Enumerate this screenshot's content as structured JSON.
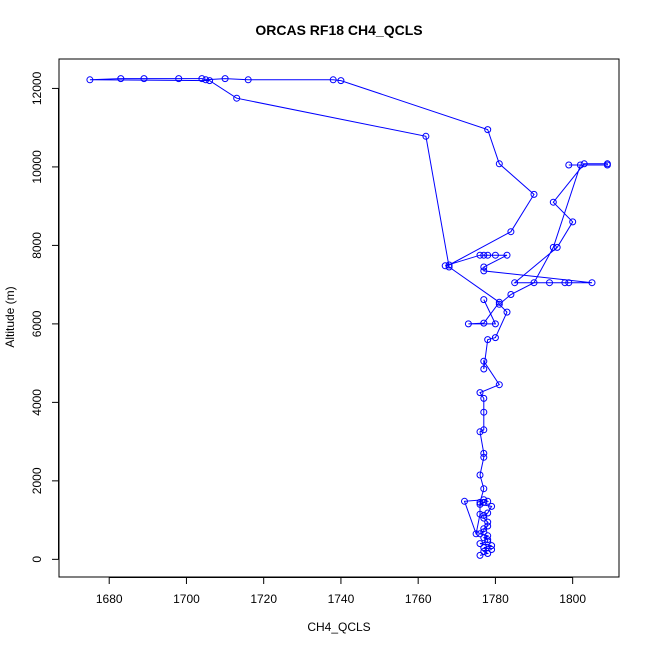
{
  "chart_data": {
    "type": "line",
    "title": "ORCAS RF18 CH4_QCLS",
    "xlabel": "CH4_QCLS",
    "ylabel": "Altitude (m)",
    "xlim": [
      1667,
      1812
    ],
    "ylim": [
      -450,
      12750
    ],
    "xticks": [
      1680,
      1700,
      1720,
      1740,
      1760,
      1780,
      1800
    ],
    "yticks": [
      0,
      2000,
      4000,
      6000,
      8000,
      10000,
      12000
    ],
    "grid": false,
    "marker": "open-circle",
    "line_color": "#0000ff",
    "series": [
      {
        "values": [
          [
            1776,
            100
          ],
          [
            1778,
            150
          ],
          [
            1777,
            200
          ],
          [
            1779,
            250
          ],
          [
            1777,
            300
          ],
          [
            1779,
            350
          ],
          [
            1776,
            400
          ],
          [
            1778,
            450
          ],
          [
            1778,
            500
          ],
          [
            1777,
            550
          ],
          [
            1778,
            600
          ],
          [
            1776,
            650
          ],
          [
            1777,
            700
          ],
          [
            1777,
            780
          ],
          [
            1778,
            850
          ],
          [
            1778,
            950
          ],
          [
            1777,
            1050
          ],
          [
            1777,
            1120
          ],
          [
            1778,
            1180
          ],
          [
            1779,
            1350
          ],
          [
            1776,
            1400
          ],
          [
            1777,
            1450
          ],
          [
            1778,
            1480
          ],
          [
            1777,
            1520
          ],
          [
            1772,
            1480
          ],
          [
            1775,
            650
          ],
          [
            1776,
            1150
          ],
          [
            1776,
            1450
          ],
          [
            1777,
            1800
          ],
          [
            1776,
            2150
          ],
          [
            1777,
            2600
          ],
          [
            1777,
            2700
          ],
          [
            1776,
            3250
          ],
          [
            1777,
            3300
          ],
          [
            1777,
            3750
          ],
          [
            1777,
            4100
          ],
          [
            1776,
            4250
          ],
          [
            1781,
            4450
          ],
          [
            1777,
            5050
          ],
          [
            1777,
            4850
          ],
          [
            1778,
            5600
          ],
          [
            1780,
            5650
          ],
          [
            1783,
            6300
          ],
          [
            1781,
            6500
          ],
          [
            1784,
            6750
          ],
          [
            1790,
            7050
          ],
          [
            1795,
            7950
          ],
          [
            1802,
            10050
          ],
          [
            1799,
            10050
          ],
          [
            1809,
            10050
          ],
          [
            1809,
            10080
          ],
          [
            1803,
            10080
          ],
          [
            1795,
            9100
          ],
          [
            1800,
            8600
          ],
          [
            1796,
            7950
          ],
          [
            1785,
            7050
          ],
          [
            1794,
            7050
          ],
          [
            1798,
            7050
          ],
          [
            1799,
            7050
          ],
          [
            1805,
            7050
          ],
          [
            1777,
            7350
          ],
          [
            1777,
            7450
          ],
          [
            1783,
            7750
          ],
          [
            1777,
            7750
          ],
          [
            1778,
            7750
          ],
          [
            1780,
            7750
          ],
          [
            1776,
            7750
          ],
          [
            1767,
            7480
          ],
          [
            1768,
            7500
          ],
          [
            1784,
            8350
          ],
          [
            1790,
            9300
          ],
          [
            1781,
            10080
          ],
          [
            1778,
            10950
          ],
          [
            1740,
            12200
          ],
          [
            1738,
            12220
          ],
          [
            1716,
            12220
          ],
          [
            1710,
            12250
          ],
          [
            1705,
            12220
          ],
          [
            1704,
            12250
          ],
          [
            1698,
            12250
          ],
          [
            1689,
            12250
          ],
          [
            1683,
            12250
          ],
          [
            1675,
            12220
          ],
          [
            1706,
            12200
          ],
          [
            1713,
            11750
          ],
          [
            1762,
            10780
          ],
          [
            1768,
            7450
          ],
          [
            1781,
            6550
          ],
          [
            1777,
            6020
          ],
          [
            1773,
            6000
          ],
          [
            1780,
            6000
          ],
          [
            1777,
            6620
          ]
        ]
      }
    ]
  }
}
